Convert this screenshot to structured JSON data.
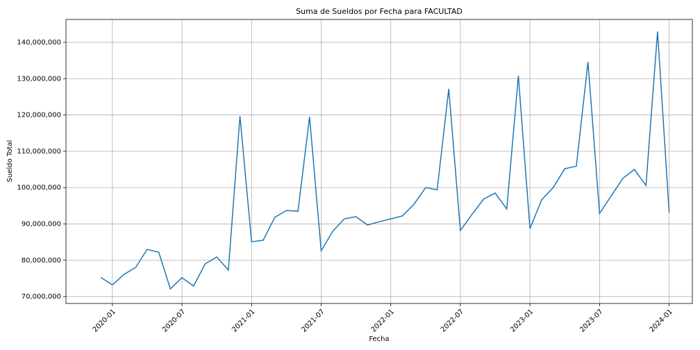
{
  "chart_data": {
    "type": "line",
    "title": "Suma de Sueldos por Fecha para FACULTAD",
    "x_label": "Fecha",
    "y_label": "Sueldo Total",
    "x": [
      "2019-12",
      "2020-01",
      "2020-02",
      "2020-03",
      "2020-04",
      "2020-05",
      "2020-06",
      "2020-07",
      "2020-08",
      "2020-09",
      "2020-10",
      "2020-11",
      "2020-12",
      "2021-01",
      "2021-02",
      "2021-03",
      "2021-04",
      "2021-05",
      "2021-06",
      "2021-07",
      "2021-08",
      "2021-09",
      "2021-10",
      "2021-11",
      "2021-12",
      "2022-01",
      "2022-02",
      "2022-03",
      "2022-04",
      "2022-05",
      "2022-06",
      "2022-07",
      "2022-08",
      "2022-09",
      "2022-10",
      "2022-11",
      "2022-12",
      "2023-01",
      "2023-02",
      "2023-03",
      "2023-04",
      "2023-05",
      "2023-06",
      "2023-07",
      "2023-08",
      "2023-09",
      "2023-10",
      "2023-11",
      "2023-12",
      "2024-01"
    ],
    "series": [
      {
        "name": "Sueldo Total",
        "color": "#1f77b4",
        "values": [
          75300000,
          73200000,
          76100000,
          78000000,
          83000000,
          82200000,
          72100000,
          75200000,
          72900000,
          79000000,
          80900000,
          77300000,
          119700000,
          85100000,
          85500000,
          91800000,
          93700000,
          93500000,
          119500000,
          82600000,
          88000000,
          91400000,
          92000000,
          89700000,
          90600000,
          91400000,
          92200000,
          95400000,
          100000000,
          99400000,
          127200000,
          88200000,
          92600000,
          96800000,
          98500000,
          94100000,
          130800000,
          88700000,
          96600000,
          100000000,
          105200000,
          105900000,
          134600000,
          92900000,
          97700000,
          102500000,
          105000000,
          100600000,
          143000000,
          93100000
        ]
      }
    ],
    "xlim": [
      "2019-09",
      "2024-03"
    ],
    "xticks": [
      "2020-01",
      "2020-07",
      "2021-01",
      "2021-07",
      "2022-01",
      "2022-07",
      "2023-01",
      "2023-07",
      "2024-01"
    ],
    "ylim": [
      68100000,
      146300000
    ],
    "yticks": [
      {
        "value": 70000000,
        "label": "70,000,000"
      },
      {
        "value": 80000000,
        "label": "80,000,000"
      },
      {
        "value": 90000000,
        "label": "90,000,000"
      },
      {
        "value": 100000000,
        "label": "100,000,000"
      },
      {
        "value": 110000000,
        "label": "110,000,000"
      },
      {
        "value": 120000000,
        "label": "120,000,000"
      },
      {
        "value": 130000000,
        "label": "130,000,000"
      },
      {
        "value": 140000000,
        "label": "140,000,000"
      }
    ],
    "grid": true
  }
}
